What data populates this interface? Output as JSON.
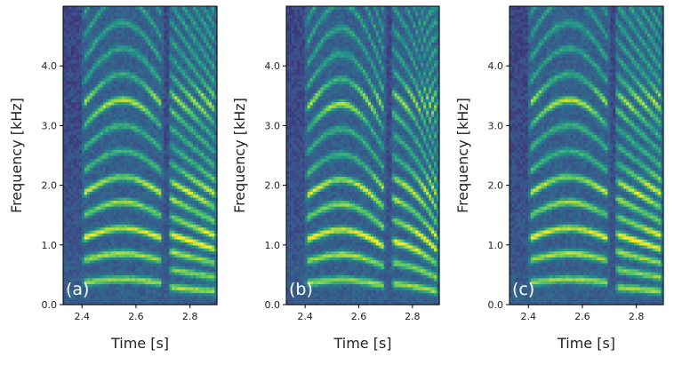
{
  "chart_data": [
    {
      "type": "heatmap",
      "panel_label": "(a)",
      "xlabel": "Time [s]",
      "ylabel": "Frequency [kHz]",
      "xlim": [
        2.33,
        2.9
      ],
      "ylim": [
        0.0,
        5.0
      ],
      "xticks": [
        2.4,
        2.6,
        2.8
      ],
      "xtick_labels": [
        "2.4",
        "2.6",
        "2.8"
      ],
      "yticks": [
        0.0,
        1.0,
        2.0,
        3.0,
        4.0
      ],
      "ytick_labels": [
        "0.0",
        "1.0",
        "2.0",
        "3.0",
        "4.0"
      ],
      "colormap": [
        "#440154",
        "#3b528b",
        "#21918c",
        "#5ec962",
        "#fde725"
      ],
      "segments": [
        {
          "start": 2.4,
          "end": 2.7,
          "f0_start": 0.37,
          "f0_end": 0.37,
          "bend": 0.06
        },
        {
          "start": 2.72,
          "end": 2.9,
          "f0_start": 0.3,
          "f0_end": 0.23,
          "bend": 0.0
        }
      ],
      "formant_peaks": [
        1.1,
        1.9,
        3.4
      ]
    },
    {
      "type": "heatmap",
      "panel_label": "(b)",
      "xlabel": "Time [s]",
      "ylabel": "Frequency [kHz]",
      "xlim": [
        2.33,
        2.9
      ],
      "ylim": [
        0.0,
        5.0
      ],
      "xticks": [
        2.4,
        2.6,
        2.8
      ],
      "xtick_labels": [
        "2.4",
        "2.6",
        "2.8"
      ],
      "yticks": [
        0.0,
        1.0,
        2.0,
        3.0,
        4.0
      ],
      "ytick_labels": [
        "0.0",
        "1.0",
        "2.0",
        "3.0",
        "4.0"
      ],
      "colormap": [
        "#440154",
        "#3b528b",
        "#21918c",
        "#5ec962",
        "#fde725"
      ],
      "segments": [
        {
          "start": 2.4,
          "end": 2.7,
          "f0_start": 0.36,
          "f0_end": 0.32,
          "bend": 0.08
        },
        {
          "start": 2.72,
          "end": 2.9,
          "f0_start": 0.36,
          "f0_end": 0.22,
          "bend": 0.02
        }
      ],
      "formant_peaks": [
        1.1,
        1.9,
        3.4
      ]
    },
    {
      "type": "heatmap",
      "panel_label": "(c)",
      "xlabel": "Time [s]",
      "ylabel": "Frequency [kHz]",
      "xlim": [
        2.33,
        2.9
      ],
      "ylim": [
        0.0,
        5.0
      ],
      "xticks": [
        2.4,
        2.6,
        2.8
      ],
      "xtick_labels": [
        "2.4",
        "2.6",
        "2.8"
      ],
      "yticks": [
        0.0,
        1.0,
        2.0,
        3.0,
        4.0
      ],
      "ytick_labels": [
        "0.0",
        "1.0",
        "2.0",
        "3.0",
        "4.0"
      ],
      "colormap": [
        "#440154",
        "#3b528b",
        "#21918c",
        "#5ec962",
        "#fde725"
      ],
      "segments": [
        {
          "start": 2.4,
          "end": 2.7,
          "f0_start": 0.37,
          "f0_end": 0.37,
          "bend": 0.06
        },
        {
          "start": 2.72,
          "end": 2.9,
          "f0_start": 0.3,
          "f0_end": 0.23,
          "bend": 0.0
        }
      ],
      "formant_peaks": [
        1.1,
        1.9,
        3.4
      ]
    }
  ]
}
